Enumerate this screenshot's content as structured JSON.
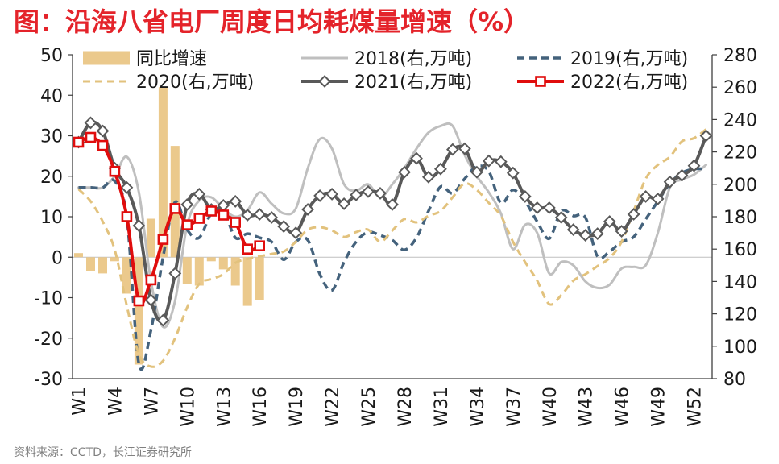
{
  "source": "资料来源：CCTD，长江证券研究所",
  "chart_data": {
    "type": "line",
    "title": "图：沿海八省电厂周度日均耗煤量增速（%）",
    "legend_position": "top",
    "weeks": [
      1,
      2,
      3,
      4,
      5,
      6,
      7,
      8,
      9,
      10,
      11,
      12,
      13,
      14,
      15,
      16,
      17,
      18,
      19,
      20,
      21,
      22,
      23,
      24,
      25,
      26,
      27,
      28,
      29,
      30,
      31,
      32,
      33,
      34,
      35,
      36,
      37,
      38,
      39,
      40,
      41,
      42,
      43,
      44,
      45,
      46,
      47,
      48,
      49,
      50,
      51,
      52,
      53
    ],
    "xtick_weeks": [
      1,
      4,
      7,
      10,
      13,
      16,
      19,
      22,
      25,
      28,
      31,
      34,
      37,
      40,
      43,
      46,
      49,
      52
    ],
    "xtick_labels": [
      "W1",
      "W4",
      "W7",
      "W10",
      "W13",
      "W16",
      "W19",
      "W22",
      "W25",
      "W28",
      "W31",
      "W34",
      "W37",
      "W40",
      "W43",
      "W46",
      "W49",
      "W52"
    ],
    "y_left": {
      "min": -30,
      "max": 50,
      "ticks": [
        50,
        40,
        30,
        20,
        10,
        0,
        -10,
        -20,
        -30
      ],
      "series_index": [
        0
      ]
    },
    "y_right": {
      "min": 80,
      "max": 280,
      "ticks": [
        280,
        260,
        240,
        220,
        200,
        180,
        160,
        140,
        120,
        100,
        80
      ],
      "series_index": [
        1,
        2,
        3,
        4,
        5
      ]
    },
    "series": [
      {
        "name": "同比增速",
        "color": "#ebc98c",
        "values": [
          1,
          -3.5,
          -4,
          -1,
          -9,
          -26.5,
          9.5,
          42,
          27.5,
          -6.5,
          -7,
          -1,
          -3,
          -7,
          -12,
          -10.5,
          null,
          null,
          null,
          null,
          null,
          null,
          null,
          null,
          null,
          null,
          null,
          null,
          null,
          null,
          null,
          null,
          null,
          null,
          null,
          null,
          null,
          null,
          null,
          null,
          null,
          null,
          null,
          null,
          null,
          null,
          null,
          null,
          null,
          null,
          null,
          null,
          null
        ]
      },
      {
        "name": "2018(右,万吨)",
        "color": "#bfbfbf",
        "values": [
          198,
          198,
          198,
          205,
          217,
          195,
          140,
          112,
          128,
          175,
          190,
          192,
          185,
          180,
          184,
          195,
          188,
          182,
          185,
          210,
          228,
          222,
          200,
          196,
          200,
          192,
          200,
          210,
          222,
          232,
          236,
          236,
          218,
          205,
          195,
          182,
          160,
          175,
          170,
          145,
          152,
          150,
          140,
          136,
          138,
          148,
          149,
          150,
          170,
          198,
          203,
          206,
          212
        ]
      },
      {
        "name": "2019(右,万吨)",
        "color": "#44627c",
        "values": [
          198,
          198,
          198,
          202,
          179.5,
          89,
          110,
          155,
          189,
          172,
          167,
          182,
          183.5,
          167,
          169.5,
          167,
          164.5,
          153.5,
          164.5,
          165.5,
          144.5,
          134.5,
          152,
          164.5,
          170.5,
          168.5,
          165.5,
          159.5,
          167,
          183.5,
          198.5,
          194.5,
          203.5,
          211,
          208,
          188.5,
          196.5,
          189.5,
          177,
          166.5,
          183.5,
          180.5,
          179.5,
          155.5,
          158.5,
          164.5,
          167.5,
          178.5,
          189.5,
          200.5,
          207,
          209.5,
          209.5
        ]
      },
      {
        "name": "2020(右,万吨)",
        "color": "#e2c27d",
        "values": [
          197,
          189.5,
          177,
          159.5,
          125,
          95,
          87.5,
          91,
          105,
          124,
          138.5,
          141.5,
          144.5,
          151.5,
          154,
          155.5,
          157,
          158.5,
          164.5,
          172,
          173.5,
          171.5,
          167.5,
          170.5,
          172,
          164.5,
          171.5,
          178.5,
          176.5,
          180.5,
          183.5,
          192,
          200.5,
          196.5,
          188.5,
          180.5,
          164.5,
          152,
          140.5,
          126,
          131.5,
          140.5,
          144.5,
          149.5,
          154.5,
          164.5,
          183.5,
          203.5,
          212,
          217,
          226.5,
          228.5,
          234
        ]
      },
      {
        "name": "2021(右,万吨)",
        "color": "#595959",
        "values": [
          226,
          238,
          233,
          210,
          198,
          174.5,
          128.5,
          116,
          145,
          187.5,
          194,
          184.5,
          187,
          189.5,
          181,
          181.5,
          179.5,
          174,
          170,
          184.5,
          193,
          194,
          188,
          193.5,
          195.5,
          194.5,
          187.5,
          207.5,
          216,
          204.5,
          209.5,
          221.5,
          222,
          207.5,
          214.5,
          214,
          207,
          192.5,
          185.5,
          185.5,
          179.5,
          172,
          168.5,
          169.5,
          177,
          171,
          181.5,
          192.5,
          191,
          201.5,
          205.5,
          211.5,
          230
        ]
      },
      {
        "name": "2022(右,万吨)",
        "color": "#e00d0d",
        "values": [
          226,
          229,
          224,
          208,
          180,
          128,
          141,
          166,
          185,
          175,
          179,
          183.5,
          181,
          176.5,
          160,
          162,
          null,
          null,
          null,
          null,
          null,
          null,
          null,
          null,
          null,
          null,
          null,
          null,
          null,
          null,
          null,
          null,
          null,
          null,
          null,
          null,
          null,
          null,
          null,
          null,
          null,
          null,
          null,
          null,
          null,
          null,
          null,
          null,
          null,
          null,
          null,
          null,
          null
        ]
      }
    ]
  }
}
